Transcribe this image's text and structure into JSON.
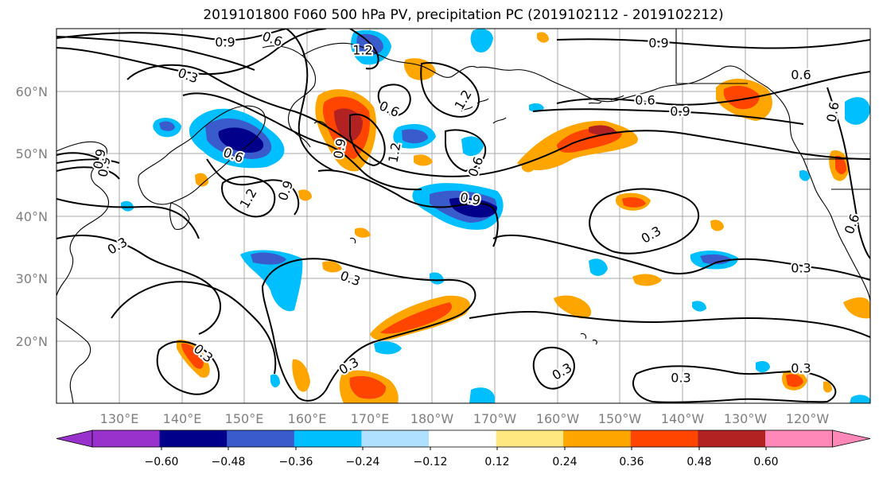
{
  "title": "2019101800 F060 500 hPa PV, precipitation PC (2019102112 - 2019102212)",
  "latitude_labels": [
    "60°N",
    "50°N",
    "40°N",
    "30°N",
    "20°N"
  ],
  "longitude_labels": [
    "130°E",
    "140°E",
    "150°E",
    "160°E",
    "170°E",
    "180°W",
    "170°W",
    "160°W",
    "150°W",
    "140°W",
    "130°W",
    "120°W"
  ],
  "contour_labels": [
    "0.9",
    "0.6",
    "1.2",
    "0.3",
    "0.6",
    "1.2",
    "0.6",
    "0.9",
    "0.6",
    "0.9",
    "0.6",
    "0.6",
    "0.9",
    "1.2",
    "0.9",
    "0.9",
    "1.2",
    "0.9",
    "0.3",
    "0.3",
    "0.3",
    "0.3",
    "0.3",
    "0.3",
    "0.3",
    "0.3",
    "0.3",
    "0.6",
    "0.6",
    "0.9"
  ],
  "colorbar": {
    "ticks": [
      "−0.60",
      "−0.48",
      "−0.36",
      "−0.24",
      "−0.12",
      "0.12",
      "0.24",
      "0.36",
      "0.48",
      "0.60"
    ],
    "colors": [
      "#9932cc",
      "#00008b",
      "#3a5bcc",
      "#00bfff",
      "#b0e0ff",
      "#ffffff",
      "#ffe880",
      "#ffa500",
      "#ff4500",
      "#b22222",
      "#ff88b8"
    ]
  }
}
